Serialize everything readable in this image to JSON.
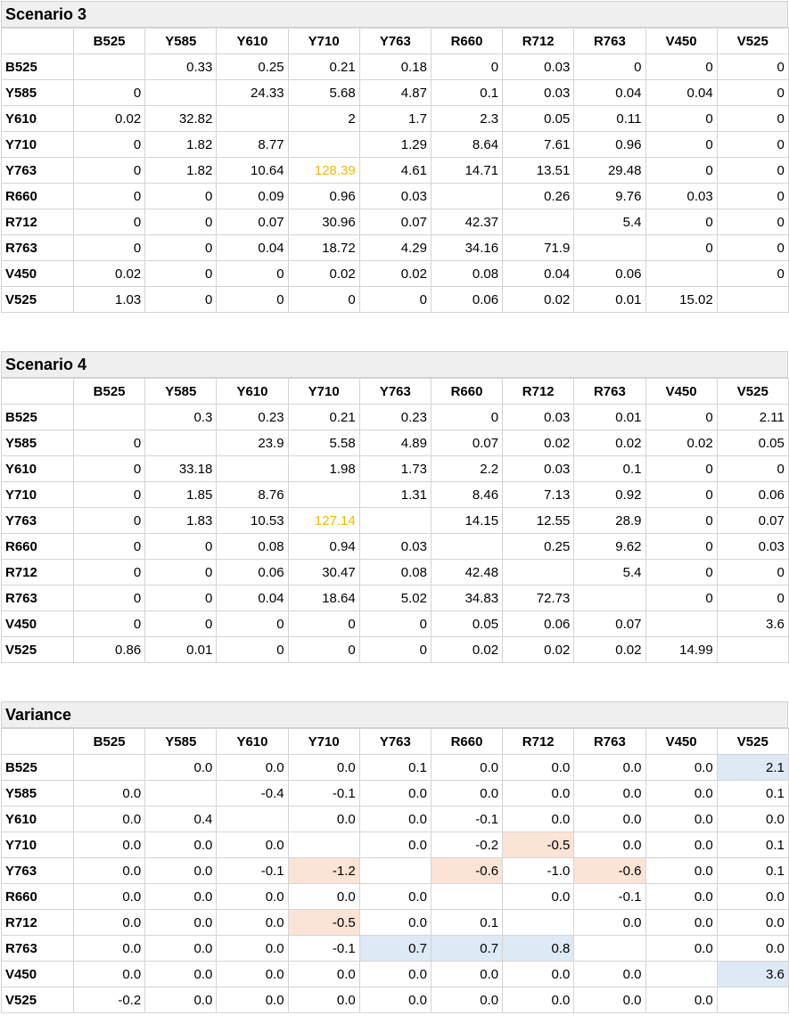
{
  "colors": {
    "highlight_text": "#f5b800",
    "negative_fill": "#fbe3d6",
    "positive_fill": "#dde9f5"
  },
  "columns": [
    "B525",
    "Y585",
    "Y610",
    "Y710",
    "Y763",
    "R660",
    "R712",
    "R763",
    "V450",
    "V525"
  ],
  "tables": [
    {
      "title": "Scenario 3",
      "rows": [
        {
          "label": "B525",
          "cells": [
            "",
            "0.33",
            "0.25",
            "0.21",
            "0.18",
            "0",
            "0.03",
            "0",
            "0",
            "0"
          ]
        },
        {
          "label": "Y585",
          "cells": [
            "0",
            "",
            "24.33",
            "5.68",
            "4.87",
            "0.1",
            "0.03",
            "0.04",
            "0.04",
            "0"
          ]
        },
        {
          "label": "Y610",
          "cells": [
            "0.02",
            "32.82",
            "",
            "2",
            "1.7",
            "2.3",
            "0.05",
            "0.11",
            "0",
            "0"
          ]
        },
        {
          "label": "Y710",
          "cells": [
            "0",
            "1.82",
            "8.77",
            "",
            "1.29",
            "8.64",
            "7.61",
            "0.96",
            "0",
            "0"
          ]
        },
        {
          "label": "Y763",
          "cells": [
            "0",
            "1.82",
            "10.64",
            "128.39",
            "4.61",
            "14.71",
            "13.51",
            "29.48",
            "0",
            "0"
          ]
        },
        {
          "label": "R660",
          "cells": [
            "0",
            "0",
            "0.09",
            "0.96",
            "0.03",
            "",
            "0.26",
            "9.76",
            "0.03",
            "0"
          ]
        },
        {
          "label": "R712",
          "cells": [
            "0",
            "0",
            "0.07",
            "30.96",
            "0.07",
            "42.37",
            "",
            "5.4",
            "0",
            "0"
          ]
        },
        {
          "label": "R763",
          "cells": [
            "0",
            "0",
            "0.04",
            "18.72",
            "4.29",
            "34.16",
            "71.9",
            "",
            "0",
            "0"
          ]
        },
        {
          "label": "V450",
          "cells": [
            "0.02",
            "0",
            "0",
            "0.02",
            "0.02",
            "0.08",
            "0.04",
            "0.06",
            "",
            "0"
          ]
        },
        {
          "label": "V525",
          "cells": [
            "1.03",
            "0",
            "0",
            "0",
            "0",
            "0.06",
            "0.02",
            "0.01",
            "15.02",
            ""
          ]
        }
      ],
      "highlights": [
        {
          "row": 4,
          "col": 3,
          "type": "text"
        }
      ]
    },
    {
      "title": "Scenario 4",
      "rows": [
        {
          "label": "B525",
          "cells": [
            "",
            "0.3",
            "0.23",
            "0.21",
            "0.23",
            "0",
            "0.03",
            "0.01",
            "0",
            "2.11"
          ]
        },
        {
          "label": "Y585",
          "cells": [
            "0",
            "",
            "23.9",
            "5.58",
            "4.89",
            "0.07",
            "0.02",
            "0.02",
            "0.02",
            "0.05"
          ]
        },
        {
          "label": "Y610",
          "cells": [
            "0",
            "33.18",
            "",
            "1.98",
            "1.73",
            "2.2",
            "0.03",
            "0.1",
            "0",
            "0"
          ]
        },
        {
          "label": "Y710",
          "cells": [
            "0",
            "1.85",
            "8.76",
            "",
            "1.31",
            "8.46",
            "7.13",
            "0.92",
            "0",
            "0.06"
          ]
        },
        {
          "label": "Y763",
          "cells": [
            "0",
            "1.83",
            "10.53",
            "127.14",
            "",
            "14.15",
            "12.55",
            "28.9",
            "0",
            "0.07"
          ]
        },
        {
          "label": "R660",
          "cells": [
            "0",
            "0",
            "0.08",
            "0.94",
            "0.03",
            "",
            "0.25",
            "9.62",
            "0",
            "0.03"
          ]
        },
        {
          "label": "R712",
          "cells": [
            "0",
            "0",
            "0.06",
            "30.47",
            "0.08",
            "42.48",
            "",
            "5.4",
            "0",
            "0"
          ]
        },
        {
          "label": "R763",
          "cells": [
            "0",
            "0",
            "0.04",
            "18.64",
            "5.02",
            "34.83",
            "72.73",
            "",
            "0",
            "0"
          ]
        },
        {
          "label": "V450",
          "cells": [
            "0",
            "0",
            "0",
            "0",
            "0",
            "0.05",
            "0.06",
            "0.07",
            "",
            "3.6"
          ]
        },
        {
          "label": "V525",
          "cells": [
            "0.86",
            "0.01",
            "0",
            "0",
            "0",
            "0.02",
            "0.02",
            "0.02",
            "14.99",
            ""
          ]
        }
      ],
      "highlights": [
        {
          "row": 4,
          "col": 3,
          "type": "text"
        }
      ]
    },
    {
      "title": "Variance",
      "rows": [
        {
          "label": "B525",
          "cells": [
            "",
            "0.0",
            "0.0",
            "0.0",
            "0.1",
            "0.0",
            "0.0",
            "0.0",
            "0.0",
            "2.1"
          ]
        },
        {
          "label": "Y585",
          "cells": [
            "0.0",
            "",
            "-0.4",
            "-0.1",
            "0.0",
            "0.0",
            "0.0",
            "0.0",
            "0.0",
            "0.1"
          ]
        },
        {
          "label": "Y610",
          "cells": [
            "0.0",
            "0.4",
            "",
            "0.0",
            "0.0",
            "-0.1",
            "0.0",
            "0.0",
            "0.0",
            "0.0"
          ]
        },
        {
          "label": "Y710",
          "cells": [
            "0.0",
            "0.0",
            "0.0",
            "",
            "0.0",
            "-0.2",
            "-0.5",
            "0.0",
            "0.0",
            "0.1"
          ]
        },
        {
          "label": "Y763",
          "cells": [
            "0.0",
            "0.0",
            "-0.1",
            "-1.2",
            "",
            "-0.6",
            "-1.0",
            "-0.6",
            "0.0",
            "0.1"
          ]
        },
        {
          "label": "R660",
          "cells": [
            "0.0",
            "0.0",
            "0.0",
            "0.0",
            "0.0",
            "",
            "0.0",
            "-0.1",
            "0.0",
            "0.0"
          ]
        },
        {
          "label": "R712",
          "cells": [
            "0.0",
            "0.0",
            "0.0",
            "-0.5",
            "0.0",
            "0.1",
            "",
            "0.0",
            "0.0",
            "0.0"
          ]
        },
        {
          "label": "R763",
          "cells": [
            "0.0",
            "0.0",
            "0.0",
            "-0.1",
            "0.7",
            "0.7",
            "0.8",
            "",
            "0.0",
            "0.0"
          ]
        },
        {
          "label": "V450",
          "cells": [
            "0.0",
            "0.0",
            "0.0",
            "0.0",
            "0.0",
            "0.0",
            "0.0",
            "0.0",
            "",
            "3.6"
          ]
        },
        {
          "label": "V525",
          "cells": [
            "-0.2",
            "0.0",
            "0.0",
            "0.0",
            "0.0",
            "0.0",
            "0.0",
            "0.0",
            "0.0",
            ""
          ]
        }
      ],
      "highlights": [
        {
          "row": 0,
          "col": 9,
          "type": "positive"
        },
        {
          "row": 3,
          "col": 6,
          "type": "negative"
        },
        {
          "row": 4,
          "col": 3,
          "type": "negative"
        },
        {
          "row": 4,
          "col": 5,
          "type": "negative"
        },
        {
          "row": 4,
          "col": 7,
          "type": "negative"
        },
        {
          "row": 6,
          "col": 3,
          "type": "negative"
        },
        {
          "row": 7,
          "col": 4,
          "type": "positive"
        },
        {
          "row": 7,
          "col": 5,
          "type": "positive"
        },
        {
          "row": 7,
          "col": 6,
          "type": "positive"
        },
        {
          "row": 8,
          "col": 9,
          "type": "positive"
        }
      ]
    }
  ]
}
